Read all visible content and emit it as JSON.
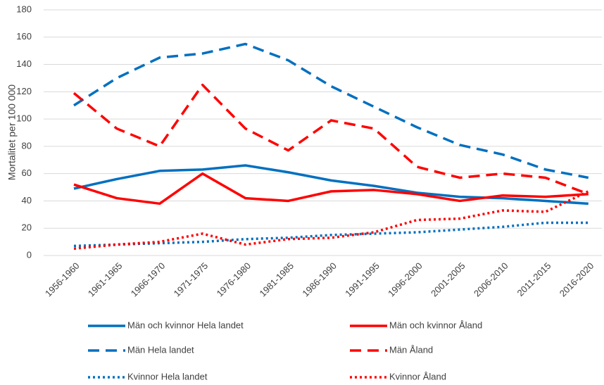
{
  "chart_data": {
    "type": "line",
    "y_label": "Mortalitet per 100 000",
    "categories": [
      "1956-1960",
      "1961-1965",
      "1966-1970",
      "1971-1975",
      "1976-1980",
      "1981-1985",
      "1986-1990",
      "1991-1995",
      "1996-2000",
      "2001-2005",
      "2006-2010",
      "2011-2015",
      "2016-2020"
    ],
    "series": [
      {
        "name": "Män och kvinnor Hela landet",
        "color": "#0070c0",
        "style": "solid",
        "values": [
          49,
          56,
          62,
          63,
          66,
          61,
          55,
          51,
          46,
          43,
          42,
          40,
          38
        ]
      },
      {
        "name": "Män och kvinnor Åland",
        "color": "#ff0000",
        "style": "solid",
        "values": [
          52,
          42,
          38,
          60,
          42,
          40,
          47,
          48,
          45,
          40,
          44,
          43,
          45
        ]
      },
      {
        "name": "Män Hela landet",
        "color": "#0070c0",
        "style": "dashed",
        "values": [
          110,
          130,
          145,
          148,
          155,
          143,
          124,
          109,
          94,
          81,
          74,
          63,
          57
        ]
      },
      {
        "name": "Män Åland",
        "color": "#ff0000",
        "style": "dashed",
        "values": [
          119,
          93,
          80,
          125,
          93,
          77,
          99,
          93,
          65,
          57,
          60,
          57,
          45
        ]
      },
      {
        "name": "Kvinnor Hela landet",
        "color": "#0070c0",
        "style": "dotted",
        "values": [
          7,
          8,
          9,
          10,
          12,
          13,
          15,
          16,
          17,
          19,
          21,
          24,
          24
        ]
      },
      {
        "name": "Kvinnor Åland",
        "color": "#ff0000",
        "style": "dotted",
        "values": [
          5,
          8,
          10,
          16,
          8,
          12,
          13,
          17,
          26,
          27,
          33,
          32,
          47
        ]
      }
    ],
    "ylim": [
      0,
      180
    ],
    "yticks": [
      0,
      20,
      40,
      60,
      80,
      100,
      120,
      140,
      160,
      180
    ],
    "grid": true,
    "legend": "bottom"
  }
}
